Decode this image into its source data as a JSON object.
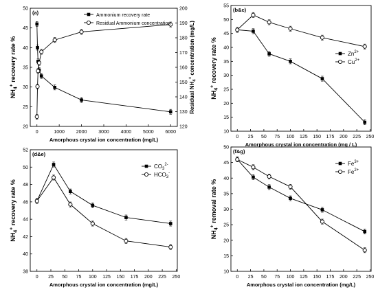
{
  "chart_data": [
    {
      "type": "scatter",
      "panel_label": "(a)",
      "xlabel": "Amorphous crystal ion concentration (mg/L)",
      "ylabel": "NH4+ recovery rate %",
      "ylabel_right": "Residual NH4+ concentration (mg/L)",
      "xlim": [
        -300,
        6300
      ],
      "ylim": [
        20,
        50
      ],
      "ylim_right": [
        120,
        200
      ],
      "xticks": [
        0,
        1000,
        2000,
        3000,
        4000,
        5000,
        6000
      ],
      "yticks": [
        20,
        25,
        30,
        35,
        40,
        45,
        50
      ],
      "yticks_right": [
        120,
        130,
        140,
        150,
        160,
        170,
        180,
        190,
        200
      ],
      "legend": "top-right",
      "series": [
        {
          "name": "Ammonium recovery rate",
          "marker": "square-filled",
          "axis": "left",
          "x": [
            0,
            25,
            50,
            100,
            200,
            800,
            2000,
            6000
          ],
          "y": [
            46.0,
            40.0,
            36.5,
            34.3,
            32.8,
            29.9,
            26.7,
            23.7
          ]
        },
        {
          "name": "Residual Ammonium concentration",
          "marker": "circle-open",
          "axis": "right",
          "x": [
            0,
            25,
            50,
            100,
            200,
            800,
            2000,
            6000
          ],
          "y": [
            126.5,
            147.0,
            157.5,
            163.0,
            170.5,
            178.5,
            184.0,
            189.0
          ]
        }
      ]
    },
    {
      "type": "line",
      "panel_label": "(b&c)",
      "xlabel": "Amorphous crystal ion concentration (mg / L)",
      "ylabel": "NH4+ recovery rate %",
      "xlim": [
        -12,
        252
      ],
      "ylim": [
        10,
        55
      ],
      "xticks": [
        0,
        25,
        50,
        75,
        100,
        125,
        150,
        175,
        200,
        225,
        250
      ],
      "yticks": [
        10,
        15,
        20,
        25,
        30,
        35,
        40,
        45,
        50,
        55
      ],
      "legend": "right",
      "series": [
        {
          "name": "Zn2+",
          "marker": "square-filled",
          "x": [
            0,
            30,
            60,
            100,
            160,
            240
          ],
          "y": [
            46.3,
            45.8,
            37.7,
            35.0,
            28.8,
            13.2
          ]
        },
        {
          "name": "Cu2+",
          "marker": "circle-open",
          "x": [
            0,
            30,
            60,
            100,
            160,
            240
          ],
          "y": [
            46.3,
            51.6,
            49.0,
            46.7,
            43.5,
            40.3
          ]
        }
      ]
    },
    {
      "type": "line",
      "panel_label": "(d&e)",
      "xlabel": "Amorphous crystal ion concentration (mg/L)",
      "ylabel": "NH4+ recovery rate %",
      "xlim": [
        -12,
        252
      ],
      "ylim": [
        38,
        52
      ],
      "xticks": [
        0,
        25,
        50,
        75,
        100,
        125,
        150,
        175,
        200,
        225,
        250
      ],
      "yticks": [
        38,
        40,
        42,
        44,
        46,
        48,
        50,
        52
      ],
      "legend": "top-right",
      "series": [
        {
          "name": "CO32-",
          "marker": "square-filled",
          "x": [
            0,
            30,
            60,
            100,
            160,
            240
          ],
          "y": [
            46.1,
            50.3,
            47.2,
            45.6,
            44.2,
            43.5
          ]
        },
        {
          "name": "HCO3-",
          "marker": "circle-open",
          "x": [
            0,
            30,
            60,
            100,
            160,
            240
          ],
          "y": [
            46.1,
            48.8,
            45.7,
            43.5,
            41.5,
            40.8
          ]
        }
      ]
    },
    {
      "type": "line",
      "panel_label": "(f&g)",
      "xlabel": "Amorphous crystal ion concentration (mg/L)",
      "ylabel": "NH4+ removal rate %",
      "xlim": [
        -12,
        252
      ],
      "ylim": [
        10,
        50
      ],
      "xticks": [
        0,
        25,
        50,
        75,
        100,
        125,
        150,
        175,
        200,
        225,
        250
      ],
      "yticks": [
        10,
        15,
        20,
        25,
        30,
        35,
        40,
        45,
        50
      ],
      "legend": "top-right",
      "series": [
        {
          "name": "Fe3+",
          "marker": "square-filled",
          "x": [
            0,
            30,
            60,
            100,
            160,
            240
          ],
          "y": [
            46.0,
            40.3,
            37.1,
            33.5,
            29.8,
            22.8
          ]
        },
        {
          "name": "Fe2+",
          "marker": "circle-open",
          "x": [
            0,
            30,
            60,
            100,
            160,
            240
          ],
          "y": [
            46.0,
            43.5,
            40.5,
            37.2,
            26.0,
            16.8
          ]
        }
      ]
    }
  ]
}
